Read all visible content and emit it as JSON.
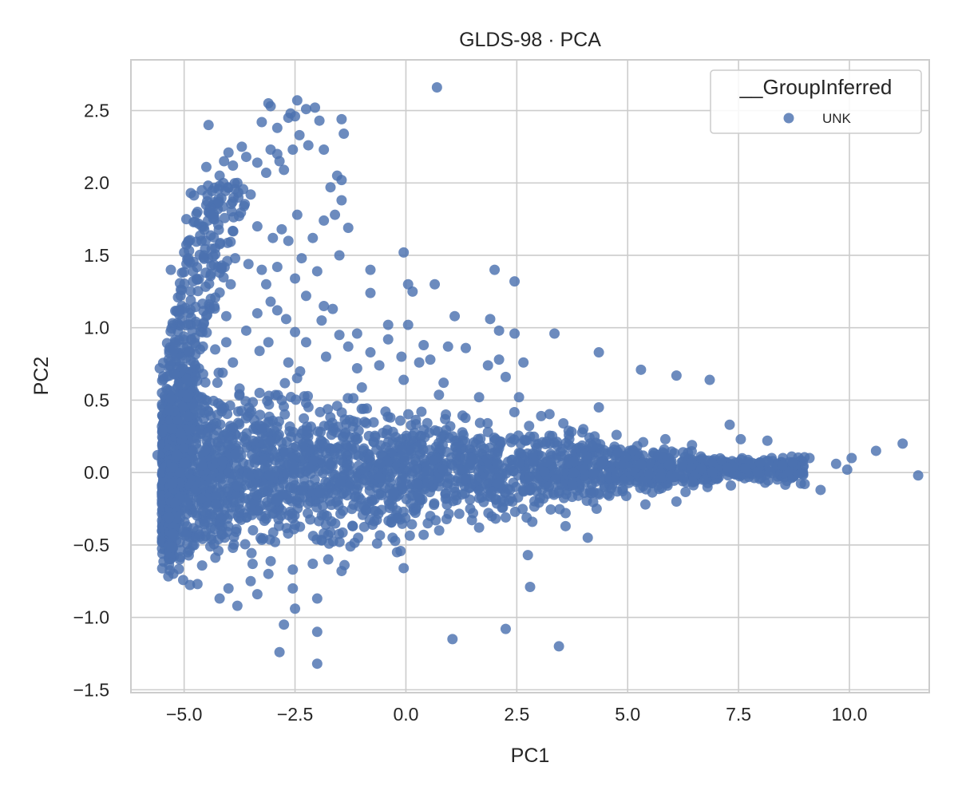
{
  "chart_data": {
    "type": "scatter",
    "title": "GLDS-98 · PCA",
    "xlabel": "PC1",
    "ylabel": "PC2",
    "xlim": [
      -6.2,
      11.8
    ],
    "ylim": [
      -1.52,
      2.85
    ],
    "x_ticks": [
      -5.0,
      -2.5,
      0.0,
      2.5,
      5.0,
      7.5,
      10.0
    ],
    "x_tick_labels": [
      "−5.0",
      "−2.5",
      "0.0",
      "2.5",
      "5.0",
      "7.5",
      "10.0"
    ],
    "y_ticks": [
      -1.5,
      -1.0,
      -0.5,
      0.0,
      0.5,
      1.0,
      1.5,
      2.0,
      2.5
    ],
    "y_tick_labels": [
      "−1.5",
      "−1.0",
      "−0.5",
      "0.0",
      "0.5",
      "1.0",
      "1.5",
      "2.0",
      "2.5"
    ],
    "grid": true,
    "legend": {
      "title": "__GroupInferred",
      "placement": "top-right",
      "entries": [
        {
          "label": "UNK",
          "color": "#4c72b0"
        }
      ]
    },
    "series": [
      {
        "name": "UNK",
        "color": "#4c72b0",
        "points": [
          [
            0.7,
            2.66
          ],
          [
            -3.1,
            2.55
          ],
          [
            -3.05,
            2.53
          ],
          [
            -2.45,
            2.57
          ],
          [
            -2.6,
            2.48
          ],
          [
            -2.25,
            2.51
          ],
          [
            -2.05,
            2.52
          ],
          [
            -2.65,
            2.45
          ],
          [
            -2.5,
            2.46
          ],
          [
            -1.95,
            2.43
          ],
          [
            -1.45,
            2.44
          ],
          [
            -4.45,
            2.4
          ],
          [
            -3.25,
            2.42
          ],
          [
            -2.9,
            2.38
          ],
          [
            -1.4,
            2.34
          ],
          [
            -2.4,
            2.33
          ],
          [
            -2.2,
            2.26
          ],
          [
            -1.85,
            2.23
          ],
          [
            -2.55,
            2.23
          ],
          [
            -2.9,
            2.2
          ],
          [
            -3.05,
            2.23
          ],
          [
            -4.5,
            2.11
          ],
          [
            -4.0,
            2.21
          ],
          [
            -3.35,
            2.14
          ],
          [
            -3.6,
            2.18
          ],
          [
            -4.1,
            2.15
          ],
          [
            -3.7,
            2.25
          ],
          [
            -2.85,
            2.15
          ],
          [
            -2.75,
            2.09
          ],
          [
            -3.15,
            2.07
          ],
          [
            -1.55,
            2.05
          ],
          [
            -1.45,
            2.02
          ],
          [
            -1.7,
            1.97
          ],
          [
            -3.8,
            2.0
          ],
          [
            -4.2,
            1.98
          ],
          [
            -4.6,
            1.95
          ],
          [
            -4.85,
            1.93
          ],
          [
            -3.5,
            1.92
          ],
          [
            -3.65,
            1.84
          ],
          [
            -1.45,
            1.88
          ],
          [
            -1.6,
            1.78
          ],
          [
            -4.7,
            1.8
          ],
          [
            -2.45,
            1.78
          ],
          [
            -1.85,
            1.74
          ],
          [
            -3.35,
            1.7
          ],
          [
            -4.95,
            1.75
          ],
          [
            -2.8,
            1.68
          ],
          [
            -2.1,
            1.62
          ],
          [
            -1.3,
            1.69
          ],
          [
            -3.0,
            1.62
          ],
          [
            -2.65,
            1.6
          ],
          [
            -4.3,
            1.55
          ],
          [
            -4.55,
            1.5
          ],
          [
            -5.0,
            1.52
          ],
          [
            -3.85,
            1.48
          ],
          [
            -2.35,
            1.48
          ],
          [
            -1.5,
            1.5
          ],
          [
            -3.55,
            1.44
          ],
          [
            -3.25,
            1.4
          ],
          [
            -2.9,
            1.42
          ],
          [
            -4.2,
            1.38
          ],
          [
            -0.05,
            1.52
          ],
          [
            -0.8,
            1.4
          ],
          [
            2.0,
            1.4
          ],
          [
            2.45,
            1.32
          ],
          [
            0.65,
            1.3
          ],
          [
            0.05,
            1.3
          ],
          [
            0.15,
            1.25
          ],
          [
            -0.8,
            1.24
          ],
          [
            -4.8,
            1.32
          ],
          [
            -3.95,
            1.3
          ],
          [
            -3.15,
            1.3
          ],
          [
            -2.5,
            1.34
          ],
          [
            -2.0,
            1.39
          ],
          [
            -2.25,
            1.22
          ],
          [
            -3.05,
            1.18
          ],
          [
            -4.4,
            1.2
          ],
          [
            -5.05,
            1.15
          ],
          [
            -1.85,
            1.15
          ],
          [
            -1.65,
            1.13
          ],
          [
            -2.9,
            1.12
          ],
          [
            -3.35,
            1.1
          ],
          [
            -4.05,
            1.08
          ],
          [
            -2.7,
            1.06
          ],
          [
            -1.9,
            1.05
          ],
          [
            -0.4,
            1.02
          ],
          [
            0.05,
            1.02
          ],
          [
            1.1,
            1.08
          ],
          [
            1.9,
            1.06
          ],
          [
            2.1,
            0.98
          ],
          [
            2.45,
            0.96
          ],
          [
            3.35,
            0.96
          ],
          [
            4.35,
            0.83
          ],
          [
            -4.85,
            1.02
          ],
          [
            -3.6,
            0.98
          ],
          [
            -2.5,
            0.97
          ],
          [
            -1.5,
            0.95
          ],
          [
            -1.1,
            0.96
          ],
          [
            -0.4,
            0.92
          ],
          [
            -4.05,
            0.9
          ],
          [
            -3.1,
            0.9
          ],
          [
            -2.25,
            0.9
          ],
          [
            -1.3,
            0.87
          ],
          [
            -0.8,
            0.83
          ],
          [
            0.4,
            0.88
          ],
          [
            1.35,
            0.86
          ],
          [
            0.95,
            0.87
          ],
          [
            -3.3,
            0.84
          ],
          [
            -4.3,
            0.85
          ],
          [
            -5.2,
            0.82
          ],
          [
            -1.8,
            0.8
          ],
          [
            -0.1,
            0.8
          ],
          [
            0.55,
            0.78
          ],
          [
            2.1,
            0.78
          ],
          [
            2.65,
            0.76
          ],
          [
            -2.65,
            0.76
          ],
          [
            -3.9,
            0.76
          ],
          [
            -4.75,
            0.74
          ],
          [
            -0.6,
            0.74
          ],
          [
            0.3,
            0.76
          ],
          [
            1.85,
            0.74
          ],
          [
            5.3,
            0.71
          ],
          [
            6.1,
            0.67
          ],
          [
            6.85,
            0.64
          ],
          [
            2.25,
            0.66
          ],
          [
            -1.1,
            0.72
          ],
          [
            -5.55,
            0.72
          ],
          [
            -5.35,
            0.78
          ],
          [
            -5.2,
            0.9
          ],
          [
            -5.05,
            1.26
          ],
          [
            -5.3,
            1.4
          ],
          [
            -4.9,
            1.6
          ],
          [
            -4.6,
            1.7
          ],
          [
            -4.35,
            1.85
          ],
          [
            -4.2,
            2.05
          ],
          [
            -3.9,
            2.12
          ],
          [
            -0.05,
            0.64
          ],
          [
            0.85,
            0.62
          ],
          [
            1.65,
            0.52
          ],
          [
            2.55,
            0.52
          ],
          [
            3.05,
            0.39
          ],
          [
            4.35,
            0.45
          ],
          [
            3.55,
            0.34
          ],
          [
            4.0,
            0.3
          ],
          [
            4.75,
            0.26
          ],
          [
            5.35,
            0.21
          ],
          [
            5.85,
            0.23
          ],
          [
            6.45,
            0.19
          ],
          [
            7.3,
            0.33
          ],
          [
            7.55,
            0.23
          ],
          [
            8.15,
            0.22
          ],
          [
            8.5,
            0.1
          ],
          [
            9.1,
            0.1
          ],
          [
            9.7,
            0.06
          ],
          [
            10.05,
            0.1
          ],
          [
            10.6,
            0.15
          ],
          [
            11.2,
            0.2
          ],
          [
            11.55,
            -0.02
          ],
          [
            9.95,
            0.02
          ],
          [
            9.35,
            -0.12
          ],
          [
            8.1,
            -0.07
          ],
          [
            7.55,
            -0.02
          ],
          [
            6.8,
            -0.1
          ],
          [
            6.1,
            -0.2
          ],
          [
            5.4,
            -0.22
          ],
          [
            4.3,
            -0.25
          ],
          [
            3.6,
            -0.28
          ],
          [
            2.85,
            -0.34
          ],
          [
            2.25,
            -0.31
          ],
          [
            1.65,
            -0.38
          ],
          [
            0.75,
            -0.4
          ],
          [
            0.4,
            -0.43
          ],
          [
            -0.3,
            -0.45
          ],
          [
            -0.65,
            -0.49
          ],
          [
            -1.25,
            -0.51
          ],
          [
            -1.75,
            -0.6
          ],
          [
            -2.1,
            -0.63
          ],
          [
            -2.55,
            -0.67
          ],
          [
            -3.1,
            -0.7
          ],
          [
            -3.5,
            -0.75
          ],
          [
            -4.0,
            -0.8
          ],
          [
            -4.7,
            -0.77
          ],
          [
            -4.2,
            -0.87
          ],
          [
            -3.8,
            -0.92
          ],
          [
            -3.35,
            -0.84
          ],
          [
            -2.55,
            -0.8
          ],
          [
            -2.0,
            -0.87
          ],
          [
            -1.45,
            -0.68
          ],
          [
            -0.05,
            -0.66
          ],
          [
            -0.2,
            -0.55
          ],
          [
            2.75,
            -0.57
          ],
          [
            2.8,
            -0.79
          ],
          [
            4.1,
            -0.45
          ],
          [
            3.6,
            -0.37
          ],
          [
            1.05,
            -1.15
          ],
          [
            2.25,
            -1.08
          ],
          [
            3.45,
            -1.2
          ],
          [
            -2.75,
            -1.05
          ],
          [
            -2.85,
            -1.24
          ],
          [
            -2.0,
            -1.1
          ],
          [
            -2.0,
            -1.32
          ],
          [
            -2.5,
            -0.94
          ],
          [
            -5.5,
            -0.15
          ],
          [
            -5.6,
            0.12
          ],
          [
            -5.25,
            -0.52
          ],
          [
            -5.1,
            -0.6
          ],
          [
            -4.85,
            0.42
          ],
          [
            -4.6,
            0.52
          ],
          [
            -4.25,
            0.62
          ],
          [
            -3.75,
            0.58
          ],
          [
            -3.3,
            0.55
          ],
          [
            -2.8,
            0.5
          ],
          [
            -2.25,
            0.48
          ],
          [
            -1.55,
            0.46
          ],
          [
            -0.95,
            0.44
          ],
          [
            -0.35,
            0.38
          ],
          [
            0.35,
            0.42
          ],
          [
            1.0,
            0.32
          ],
          [
            1.85,
            0.28
          ],
          [
            2.7,
            0.22
          ],
          [
            3.25,
            0.2
          ],
          [
            -5.3,
            0.3
          ],
          [
            -5.4,
            -0.3
          ],
          [
            -4.75,
            -0.45
          ],
          [
            -3.9,
            -0.52
          ],
          [
            -2.95,
            -0.48
          ],
          [
            -1.85,
            -0.42
          ],
          [
            -0.75,
            -0.36
          ],
          [
            0.55,
            -0.3
          ],
          [
            1.45,
            -0.25
          ],
          [
            2.4,
            -0.2
          ],
          [
            3.1,
            -0.18
          ],
          [
            4.55,
            -0.15
          ],
          [
            5.9,
            -0.09
          ],
          [
            6.7,
            -0.05
          ],
          [
            7.2,
            0.05
          ],
          [
            8.35,
            0.02
          ],
          [
            5.05,
            0.08
          ],
          [
            4.2,
            0.12
          ],
          [
            6.25,
            0.14
          ]
        ]
      }
    ]
  }
}
